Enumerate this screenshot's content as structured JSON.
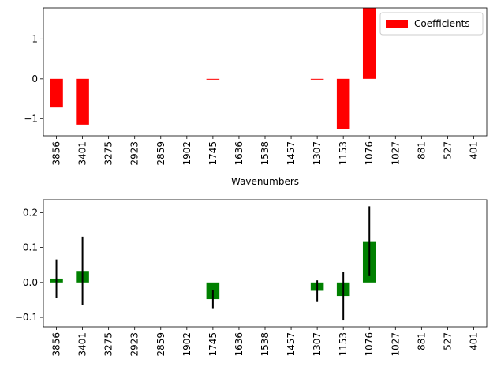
{
  "chart_data": [
    {
      "type": "bar",
      "categories": [
        "3856",
        "3401",
        "3275",
        "2923",
        "2859",
        "1902",
        "1745",
        "1636",
        "1538",
        "1457",
        "1307",
        "1153",
        "1076",
        "1027",
        "881",
        "527",
        "401"
      ],
      "series": [
        {
          "name": "Coefficients",
          "color": "#ff0000",
          "values": [
            -0.72,
            -1.15,
            0,
            0,
            0,
            0,
            -0.02,
            0,
            0,
            0,
            -0.02,
            -1.26,
            1.78,
            0,
            0,
            0,
            0
          ]
        }
      ],
      "xlabel": "Wavenumbers",
      "ylabel": "",
      "ylim": [
        -1.43,
        1.78
      ],
      "yticks": [
        -1,
        0,
        1
      ],
      "legend": "top-right",
      "grid": false
    },
    {
      "type": "bar",
      "categories": [
        "3856",
        "3401",
        "3275",
        "2923",
        "2859",
        "1902",
        "1745",
        "1636",
        "1538",
        "1457",
        "1307",
        "1153",
        "1076",
        "1027",
        "881",
        "527",
        "401"
      ],
      "series": [
        {
          "color": "#008000",
          "values": [
            0.011,
            0.033,
            0,
            0,
            0,
            0,
            -0.048,
            0,
            0,
            0,
            -0.024,
            -0.039,
            0.118,
            0,
            0,
            0,
            0
          ],
          "errors": [
            0.055,
            0.098,
            0,
            0,
            0,
            0,
            0.026,
            0,
            0,
            0,
            0.03,
            0.07,
            0.1,
            0,
            0,
            0,
            0
          ]
        }
      ],
      "xlabel": "",
      "ylabel": "",
      "ylim": [
        -0.127,
        0.237
      ],
      "yticks": [
        -0.1,
        0.0,
        0.1,
        0.2
      ],
      "ytick_labels": [
        "−0.1",
        "0.0",
        "0.1",
        "0.2"
      ],
      "grid": false
    }
  ]
}
